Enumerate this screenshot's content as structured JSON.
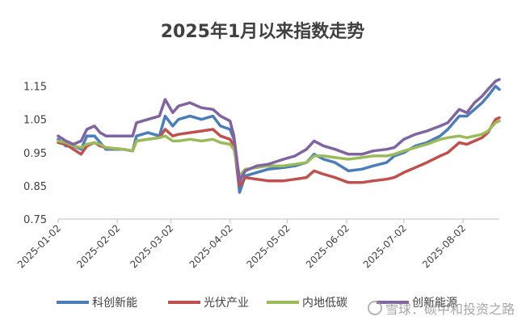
{
  "chart_data": {
    "type": "line",
    "title": "2025年1月以来指数走势",
    "xlabel": "",
    "ylabel": "",
    "ylim": [
      0.75,
      1.2
    ],
    "yticks": [
      "0.75",
      "0.85",
      "0.95",
      "1.05",
      "1.15"
    ],
    "ytick_values": [
      0.75,
      0.85,
      0.95,
      1.05,
      1.15
    ],
    "xticks": [
      "2025-01-02",
      "2025-02-02",
      "2025-03-02",
      "2025-04-02",
      "2025-05-02",
      "2025-06-02",
      "2025-07-02",
      "2025-08-02"
    ],
    "xtick_values": [
      "2025-01-02",
      "2025-02-02",
      "2025-03-02",
      "2025-04-02",
      "2025-05-02",
      "2025-06-02",
      "2025-07-02",
      "2025-08-02"
    ],
    "grid": false,
    "legend": "bottom",
    "series": [
      {
        "name": "科创新能",
        "color": "#4a7ebb",
        "points": [
          [
            "2025-01-02",
            0.99
          ],
          [
            "2025-01-06",
            0.97
          ],
          [
            "2025-01-10",
            0.97
          ],
          [
            "2025-01-14",
            0.96
          ],
          [
            "2025-01-17",
            1.0
          ],
          [
            "2025-01-21",
            1.0
          ],
          [
            "2025-01-24",
            0.98
          ],
          [
            "2025-01-27",
            0.96
          ],
          [
            "2025-02-05",
            0.96
          ],
          [
            "2025-02-10",
            0.955
          ],
          [
            "2025-02-12",
            1.0
          ],
          [
            "2025-02-18",
            1.01
          ],
          [
            "2025-02-24",
            1.0
          ],
          [
            "2025-02-27",
            1.06
          ],
          [
            "2025-03-03",
            1.03
          ],
          [
            "2025-03-06",
            1.05
          ],
          [
            "2025-03-12",
            1.06
          ],
          [
            "2025-03-18",
            1.05
          ],
          [
            "2025-03-24",
            1.06
          ],
          [
            "2025-03-28",
            1.03
          ],
          [
            "2025-04-02",
            1.02
          ],
          [
            "2025-04-04",
            0.99
          ],
          [
            "2025-04-07",
            0.83
          ],
          [
            "2025-04-10",
            0.88
          ],
          [
            "2025-04-16",
            0.89
          ],
          [
            "2025-04-22",
            0.9
          ],
          [
            "2025-04-30",
            0.905
          ],
          [
            "2025-05-06",
            0.91
          ],
          [
            "2025-05-12",
            0.92
          ],
          [
            "2025-05-16",
            0.945
          ],
          [
            "2025-05-21",
            0.93
          ],
          [
            "2025-05-27",
            0.92
          ],
          [
            "2025-06-03",
            0.895
          ],
          [
            "2025-06-10",
            0.9
          ],
          [
            "2025-06-16",
            0.91
          ],
          [
            "2025-06-23",
            0.92
          ],
          [
            "2025-06-27",
            0.94
          ],
          [
            "2025-07-02",
            0.95
          ],
          [
            "2025-07-08",
            0.97
          ],
          [
            "2025-07-14",
            0.98
          ],
          [
            "2025-07-21",
            1.0
          ],
          [
            "2025-07-25",
            1.02
          ],
          [
            "2025-07-31",
            1.06
          ],
          [
            "2025-08-04",
            1.06
          ],
          [
            "2025-08-08",
            1.08
          ],
          [
            "2025-08-12",
            1.1
          ],
          [
            "2025-08-15",
            1.12
          ],
          [
            "2025-08-19",
            1.15
          ],
          [
            "2025-08-21",
            1.14
          ]
        ]
      },
      {
        "name": "光伏产业",
        "color": "#c0504d",
        "points": [
          [
            "2025-01-02",
            0.98
          ],
          [
            "2025-01-06",
            0.975
          ],
          [
            "2025-01-10",
            0.96
          ],
          [
            "2025-01-14",
            0.945
          ],
          [
            "2025-01-17",
            0.97
          ],
          [
            "2025-01-21",
            0.98
          ],
          [
            "2025-01-24",
            0.97
          ],
          [
            "2025-01-27",
            0.965
          ],
          [
            "2025-02-05",
            0.96
          ],
          [
            "2025-02-10",
            0.955
          ],
          [
            "2025-02-12",
            0.985
          ],
          [
            "2025-02-18",
            0.99
          ],
          [
            "2025-02-24",
            0.995
          ],
          [
            "2025-02-27",
            1.02
          ],
          [
            "2025-03-03",
            1.0
          ],
          [
            "2025-03-06",
            1.005
          ],
          [
            "2025-03-12",
            1.01
          ],
          [
            "2025-03-18",
            1.015
          ],
          [
            "2025-03-24",
            1.02
          ],
          [
            "2025-03-28",
            1.0
          ],
          [
            "2025-04-02",
            0.99
          ],
          [
            "2025-04-04",
            0.97
          ],
          [
            "2025-04-07",
            0.85
          ],
          [
            "2025-04-10",
            0.875
          ],
          [
            "2025-04-16",
            0.87
          ],
          [
            "2025-04-22",
            0.865
          ],
          [
            "2025-04-30",
            0.865
          ],
          [
            "2025-05-06",
            0.87
          ],
          [
            "2025-05-12",
            0.875
          ],
          [
            "2025-05-16",
            0.895
          ],
          [
            "2025-05-21",
            0.885
          ],
          [
            "2025-05-27",
            0.875
          ],
          [
            "2025-06-03",
            0.86
          ],
          [
            "2025-06-10",
            0.86
          ],
          [
            "2025-06-16",
            0.865
          ],
          [
            "2025-06-23",
            0.87
          ],
          [
            "2025-06-27",
            0.875
          ],
          [
            "2025-07-02",
            0.89
          ],
          [
            "2025-07-08",
            0.905
          ],
          [
            "2025-07-14",
            0.92
          ],
          [
            "2025-07-21",
            0.94
          ],
          [
            "2025-07-25",
            0.95
          ],
          [
            "2025-07-31",
            0.98
          ],
          [
            "2025-08-04",
            0.975
          ],
          [
            "2025-08-08",
            0.985
          ],
          [
            "2025-08-12",
            0.995
          ],
          [
            "2025-08-15",
            1.01
          ],
          [
            "2025-08-19",
            1.05
          ],
          [
            "2025-08-21",
            1.055
          ]
        ]
      },
      {
        "name": "内地低碳",
        "color": "#9bbb59",
        "points": [
          [
            "2025-01-02",
            0.985
          ],
          [
            "2025-01-06",
            0.98
          ],
          [
            "2025-01-10",
            0.97
          ],
          [
            "2025-01-14",
            0.965
          ],
          [
            "2025-01-17",
            0.975
          ],
          [
            "2025-01-21",
            0.98
          ],
          [
            "2025-01-24",
            0.975
          ],
          [
            "2025-01-27",
            0.965
          ],
          [
            "2025-02-05",
            0.96
          ],
          [
            "2025-02-10",
            0.955
          ],
          [
            "2025-02-12",
            0.985
          ],
          [
            "2025-02-18",
            0.99
          ],
          [
            "2025-02-24",
            0.995
          ],
          [
            "2025-02-27",
            1.0
          ],
          [
            "2025-03-03",
            0.985
          ],
          [
            "2025-03-06",
            0.985
          ],
          [
            "2025-03-12",
            0.99
          ],
          [
            "2025-03-18",
            0.985
          ],
          [
            "2025-03-24",
            0.99
          ],
          [
            "2025-03-28",
            0.98
          ],
          [
            "2025-04-02",
            0.975
          ],
          [
            "2025-04-04",
            0.96
          ],
          [
            "2025-04-07",
            0.88
          ],
          [
            "2025-04-10",
            0.9
          ],
          [
            "2025-04-16",
            0.905
          ],
          [
            "2025-04-22",
            0.91
          ],
          [
            "2025-04-30",
            0.91
          ],
          [
            "2025-05-06",
            0.915
          ],
          [
            "2025-05-12",
            0.92
          ],
          [
            "2025-05-16",
            0.94
          ],
          [
            "2025-05-21",
            0.94
          ],
          [
            "2025-05-27",
            0.935
          ],
          [
            "2025-06-03",
            0.93
          ],
          [
            "2025-06-10",
            0.935
          ],
          [
            "2025-06-16",
            0.94
          ],
          [
            "2025-06-23",
            0.94
          ],
          [
            "2025-06-27",
            0.945
          ],
          [
            "2025-07-02",
            0.955
          ],
          [
            "2025-07-08",
            0.965
          ],
          [
            "2025-07-14",
            0.975
          ],
          [
            "2025-07-21",
            0.99
          ],
          [
            "2025-07-25",
            0.995
          ],
          [
            "2025-07-31",
            1.0
          ],
          [
            "2025-08-04",
            0.995
          ],
          [
            "2025-08-08",
            1.0
          ],
          [
            "2025-08-12",
            1.005
          ],
          [
            "2025-08-15",
            1.015
          ],
          [
            "2025-08-19",
            1.04
          ],
          [
            "2025-08-21",
            1.045
          ]
        ]
      },
      {
        "name": "创新能源",
        "color": "#8064a2",
        "points": [
          [
            "2025-01-02",
            1.0
          ],
          [
            "2025-01-06",
            0.985
          ],
          [
            "2025-01-10",
            0.975
          ],
          [
            "2025-01-14",
            0.985
          ],
          [
            "2025-01-17",
            1.02
          ],
          [
            "2025-01-21",
            1.03
          ],
          [
            "2025-01-24",
            1.01
          ],
          [
            "2025-01-27",
            1.0
          ],
          [
            "2025-02-05",
            1.0
          ],
          [
            "2025-02-10",
            1.0
          ],
          [
            "2025-02-12",
            1.04
          ],
          [
            "2025-02-18",
            1.05
          ],
          [
            "2025-02-24",
            1.06
          ],
          [
            "2025-02-27",
            1.11
          ],
          [
            "2025-03-03",
            1.07
          ],
          [
            "2025-03-06",
            1.09
          ],
          [
            "2025-03-12",
            1.1
          ],
          [
            "2025-03-18",
            1.085
          ],
          [
            "2025-03-24",
            1.08
          ],
          [
            "2025-03-28",
            1.06
          ],
          [
            "2025-04-02",
            1.045
          ],
          [
            "2025-04-04",
            1.0
          ],
          [
            "2025-04-07",
            0.865
          ],
          [
            "2025-04-10",
            0.895
          ],
          [
            "2025-04-16",
            0.91
          ],
          [
            "2025-04-22",
            0.915
          ],
          [
            "2025-04-30",
            0.93
          ],
          [
            "2025-05-06",
            0.94
          ],
          [
            "2025-05-12",
            0.96
          ],
          [
            "2025-05-16",
            0.985
          ],
          [
            "2025-05-21",
            0.97
          ],
          [
            "2025-05-27",
            0.96
          ],
          [
            "2025-06-03",
            0.945
          ],
          [
            "2025-06-10",
            0.945
          ],
          [
            "2025-06-16",
            0.955
          ],
          [
            "2025-06-23",
            0.96
          ],
          [
            "2025-06-27",
            0.965
          ],
          [
            "2025-07-02",
            0.99
          ],
          [
            "2025-07-08",
            1.005
          ],
          [
            "2025-07-14",
            1.015
          ],
          [
            "2025-07-21",
            1.03
          ],
          [
            "2025-07-25",
            1.04
          ],
          [
            "2025-07-31",
            1.08
          ],
          [
            "2025-08-04",
            1.07
          ],
          [
            "2025-08-08",
            1.1
          ],
          [
            "2025-08-12",
            1.12
          ],
          [
            "2025-08-15",
            1.14
          ],
          [
            "2025-08-19",
            1.165
          ],
          [
            "2025-08-21",
            1.17
          ]
        ]
      }
    ]
  },
  "watermark": {
    "text": "雪球：碳中和投资之路"
  }
}
